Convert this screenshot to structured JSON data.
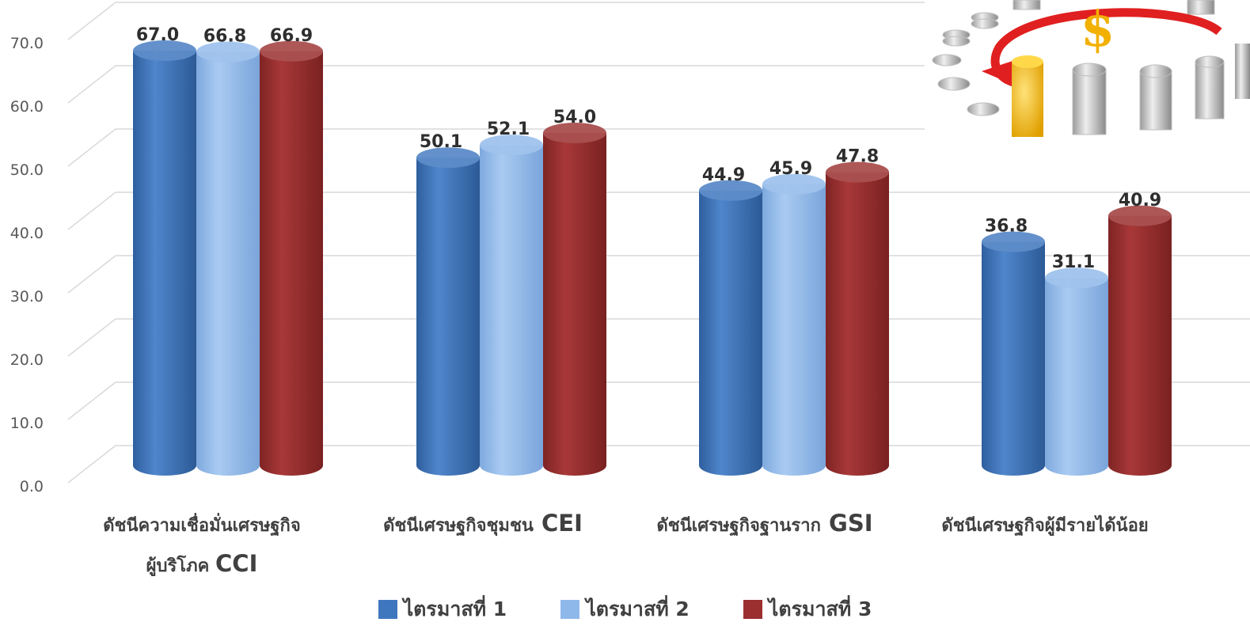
{
  "chart_data": {
    "type": "bar",
    "categories": [
      [
        "ดัชนีความเชื่อมั่นเศรษฐกิจ",
        "ผู้บริโภค",
        "CCI"
      ],
      [
        "ดัชนีเศรษฐกิจชุมชน",
        "CEI"
      ],
      [
        "ดัชนีเศรษฐกิจฐานราก",
        "GSI"
      ],
      [
        "ดัชนีเศรษฐกิจผู้มีรายได้น้อย"
      ]
    ],
    "series": [
      {
        "name": "ไตรมาสที่ 1",
        "values": [
          67.0,
          50.1,
          44.9,
          36.8
        ],
        "color": "#3f77bf"
      },
      {
        "name": "ไตรมาสที่ 2",
        "values": [
          66.8,
          52.1,
          45.9,
          31.1
        ],
        "color": "#8fb8ea"
      },
      {
        "name": "ไตรมาสที่ 3",
        "values": [
          66.9,
          54.0,
          47.8,
          40.9
        ],
        "color": "#9b2f2f"
      }
    ],
    "ylim": [
      0,
      70
    ],
    "yticks": [
      "0.0",
      "10.0",
      "20.0",
      "30.0",
      "40.0",
      "50.0",
      "60.0",
      "70.0"
    ],
    "grid": true,
    "legend_position": "bottom",
    "style": "3d-cylinder",
    "decorative_image": "coins-dollar-cycle"
  }
}
